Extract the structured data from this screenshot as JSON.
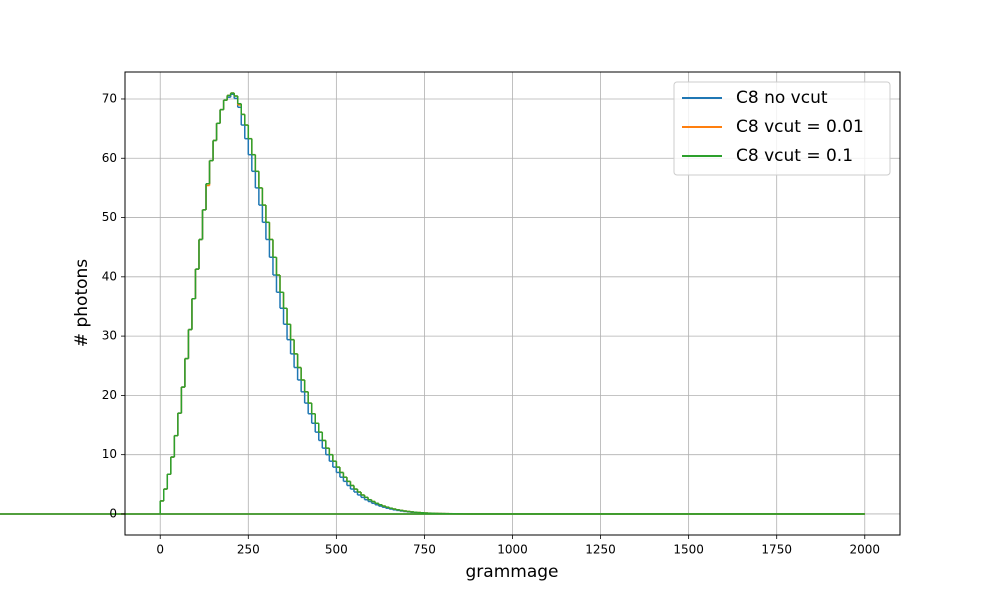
{
  "chart_data": {
    "type": "histogram",
    "histtype": "step",
    "x_label": "grammage",
    "y_label": "# photons",
    "xlim": [
      -100,
      2100
    ],
    "ylim": [
      -3.55,
      74.55
    ],
    "xticks": [
      0,
      250,
      500,
      750,
      1000,
      1250,
      1500,
      1750,
      2000
    ],
    "yticks": [
      0,
      10,
      20,
      30,
      40,
      50,
      60,
      70
    ],
    "grid": true,
    "legend": "upper right",
    "bins": [
      0,
      10,
      20,
      30,
      40,
      50,
      60,
      70,
      80,
      90,
      100,
      110,
      120,
      130,
      140,
      150,
      160,
      170,
      180,
      190,
      200,
      210,
      220,
      230,
      240,
      250,
      260,
      270,
      280,
      290,
      300,
      310,
      320,
      330,
      340,
      350,
      360,
      370,
      380,
      390,
      400,
      410,
      420,
      430,
      440,
      450,
      460,
      470,
      480,
      490,
      500,
      510,
      520,
      530,
      540,
      550,
      560,
      570,
      580,
      590,
      600,
      610,
      620,
      630,
      640,
      650,
      660,
      670,
      680,
      690,
      700,
      710,
      720,
      730,
      740,
      750,
      760,
      770,
      780,
      790,
      800,
      810,
      820,
      830,
      840,
      850,
      860,
      870,
      880,
      890,
      900,
      910,
      920,
      930,
      940,
      950,
      960,
      970,
      980,
      990,
      1000,
      1010,
      1020,
      1030,
      1040,
      1050,
      1060,
      1070,
      1080,
      1090,
      1100,
      1110,
      1120,
      1130,
      1140,
      1150,
      1160,
      1170,
      1180,
      1190,
      1200,
      1210,
      1220,
      1230,
      1240,
      1250,
      1260,
      1270,
      1280,
      1290,
      1300,
      1310,
      1320,
      1330,
      1340,
      1350,
      1360,
      1370,
      1380,
      1390,
      1400,
      1410,
      1420,
      1430,
      1440,
      1450,
      1460,
      1470,
      1480,
      1490,
      1500,
      1510,
      1520,
      1530,
      1540,
      1550,
      1560,
      1570,
      1580,
      1590,
      1600,
      1610,
      1620,
      1630,
      1640,
      1650,
      1660,
      1670,
      1680,
      1690,
      1700,
      1710,
      1720,
      1730,
      1740,
      1750,
      1760,
      1770,
      1780,
      1790,
      1800,
      1810,
      1820,
      1830,
      1840,
      1850,
      1860,
      1870,
      1880,
      1890,
      1900,
      1910,
      1920,
      1930,
      1940,
      1950,
      1960,
      1970,
      1980,
      1990,
      2000
    ],
    "series": [
      {
        "name": "C8 no vcut",
        "color": "#1f77b4",
        "values": [
          2.2,
          4.2,
          6.7,
          9.6,
          13.2,
          17.0,
          21.4,
          26.2,
          31.1,
          36.3,
          41.3,
          46.3,
          51.3,
          55.7,
          59.6,
          63.0,
          65.9,
          68.2,
          69.8,
          70.3,
          70.8,
          70.1,
          68.6,
          65.6,
          63.3,
          60.6,
          57.8,
          55.0,
          52.1,
          49.2,
          46.3,
          43.3,
          40.3,
          37.4,
          34.7,
          32.0,
          29.4,
          27.0,
          24.7,
          22.6,
          20.6,
          18.7,
          16.9,
          15.3,
          13.8,
          12.4,
          11.1,
          10.0,
          8.9,
          7.9,
          7.0,
          6.2,
          5.5,
          4.8,
          4.2,
          3.7,
          3.2,
          2.8,
          2.4,
          2.1,
          1.8,
          1.55,
          1.33,
          1.14,
          0.97,
          0.83,
          0.7,
          0.6,
          0.5,
          0.42,
          0.35,
          0.29,
          0.24,
          0.2,
          0.16,
          0.13,
          0.11,
          0.09,
          0.07,
          0.06,
          0.05,
          0.04,
          0.03,
          0.02,
          0.02,
          0.01,
          0.01,
          0,
          0,
          0,
          0,
          0,
          0,
          0,
          0,
          0,
          0,
          0,
          0,
          0,
          0,
          0,
          0,
          0,
          0,
          0,
          0,
          0,
          0,
          0,
          0,
          0,
          0,
          0,
          0,
          0,
          0,
          0,
          0,
          0,
          0,
          0,
          0,
          0,
          0,
          0,
          0,
          0,
          0,
          0,
          0,
          0,
          0,
          0,
          0,
          0,
          0,
          0,
          0,
          0,
          0,
          0,
          0,
          0,
          0,
          0,
          0,
          0,
          0,
          0,
          0,
          0,
          0,
          0,
          0,
          0,
          0,
          0,
          0,
          0,
          0,
          0,
          0,
          0,
          0,
          0,
          0,
          0,
          0,
          0,
          0,
          0,
          0,
          0,
          0,
          0,
          0,
          0,
          0,
          0,
          0,
          0,
          0,
          0,
          0,
          0,
          0,
          0,
          0,
          0,
          0,
          0,
          0,
          0,
          0,
          0,
          0,
          0,
          0,
          0,
          0,
          0,
          0,
          0,
          0,
          0,
          0,
          0,
          0,
          0,
          0,
          0
        ]
      },
      {
        "name": "C8 vcut = 0.01",
        "color": "#ff7f0e",
        "values": [
          2.2,
          4.2,
          6.7,
          9.6,
          13.2,
          17.0,
          21.4,
          26.2,
          31.1,
          36.3,
          41.3,
          46.3,
          51.3,
          55.4,
          59.6,
          63.0,
          65.9,
          68.2,
          69.8,
          70.6,
          71.0,
          70.5,
          69.0,
          67.4,
          65.6,
          63.3,
          60.6,
          57.8,
          55.0,
          52.1,
          49.2,
          46.3,
          43.3,
          40.3,
          37.4,
          34.7,
          32.0,
          29.4,
          27.0,
          24.7,
          22.6,
          20.6,
          18.7,
          16.9,
          15.3,
          13.8,
          12.4,
          11.1,
          10.0,
          8.9,
          7.9,
          7.0,
          6.2,
          5.5,
          4.8,
          4.2,
          3.7,
          3.2,
          2.8,
          2.4,
          2.1,
          1.8,
          1.55,
          1.33,
          1.14,
          0.97,
          0.83,
          0.7,
          0.6,
          0.5,
          0.42,
          0.35,
          0.29,
          0.24,
          0.2,
          0.16,
          0.13,
          0.11,
          0.09,
          0.07,
          0.06,
          0.05,
          0.04,
          0.03,
          0.02,
          0.02,
          0.01,
          0,
          0,
          0,
          0,
          0,
          0,
          0,
          0,
          0,
          0,
          0,
          0,
          0,
          0,
          0,
          0,
          0,
          0,
          0,
          0,
          0,
          0,
          0,
          0,
          0,
          0,
          0,
          0,
          0,
          0,
          0,
          0,
          0,
          0,
          0,
          0,
          0,
          0,
          0,
          0,
          0,
          0,
          0,
          0,
          0,
          0,
          0,
          0,
          0,
          0,
          0,
          0,
          0,
          0,
          0,
          0,
          0,
          0,
          0,
          0,
          0,
          0,
          0,
          0,
          0,
          0,
          0,
          0,
          0,
          0,
          0,
          0,
          0,
          0,
          0,
          0,
          0,
          0,
          0,
          0,
          0,
          0,
          0,
          0,
          0,
          0,
          0,
          0,
          0,
          0,
          0,
          0,
          0,
          0,
          0,
          0,
          0,
          0,
          0,
          0,
          0,
          0,
          0,
          0,
          0,
          0,
          0,
          0,
          0,
          0,
          0,
          0,
          0,
          0,
          0,
          0,
          0,
          0,
          0,
          0,
          0,
          0,
          0
        ]
      },
      {
        "name": "C8 vcut = 0.1",
        "color": "#2ca02c",
        "values": [
          2.2,
          4.2,
          6.7,
          9.6,
          13.2,
          17.0,
          21.4,
          26.2,
          31.1,
          36.3,
          41.3,
          46.3,
          51.3,
          55.7,
          59.6,
          63.0,
          65.9,
          68.2,
          69.8,
          70.6,
          71.0,
          70.5,
          69.2,
          67.4,
          65.6,
          63.3,
          60.6,
          57.8,
          55.0,
          52.1,
          49.2,
          46.3,
          43.3,
          40.3,
          37.4,
          34.7,
          32.0,
          29.4,
          27.0,
          24.7,
          22.6,
          20.6,
          18.7,
          16.9,
          15.3,
          13.8,
          12.4,
          11.1,
          10.0,
          8.9,
          7.9,
          7.0,
          6.2,
          5.5,
          4.8,
          4.2,
          3.7,
          3.2,
          2.8,
          2.4,
          2.1,
          1.8,
          1.55,
          1.33,
          1.14,
          0.97,
          0.83,
          0.7,
          0.6,
          0.5,
          0.42,
          0.35,
          0.29,
          0.24,
          0.2,
          0.16,
          0.13,
          0.11,
          0.09,
          0.07,
          0.06,
          0.05,
          0.04,
          0.03,
          0.02,
          0.02,
          0.01,
          0,
          0,
          0,
          0,
          0,
          0,
          0,
          0,
          0,
          0,
          0,
          0,
          0,
          0,
          0,
          0,
          0,
          0,
          0,
          0,
          0,
          0,
          0,
          0,
          0,
          0,
          0,
          0,
          0,
          0,
          0,
          0,
          0,
          0,
          0,
          0,
          0,
          0,
          0,
          0,
          0,
          0,
          0,
          0,
          0,
          0,
          0,
          0,
          0,
          0,
          0,
          0,
          0,
          0,
          0,
          0,
          0,
          0,
          0,
          0,
          0,
          0,
          0,
          0,
          0,
          0,
          0,
          0,
          0,
          0,
          0,
          0,
          0,
          0,
          0,
          0,
          0,
          0,
          0,
          0,
          0,
          0,
          0,
          0,
          0,
          0,
          0,
          0,
          0,
          0,
          0,
          0,
          0,
          0,
          0,
          0,
          0,
          0,
          0,
          0,
          0,
          0,
          0,
          0,
          0,
          0,
          0,
          0,
          0,
          0,
          0,
          0,
          0,
          0,
          0,
          0,
          0,
          0,
          0,
          0,
          0,
          0,
          0
        ]
      }
    ]
  }
}
